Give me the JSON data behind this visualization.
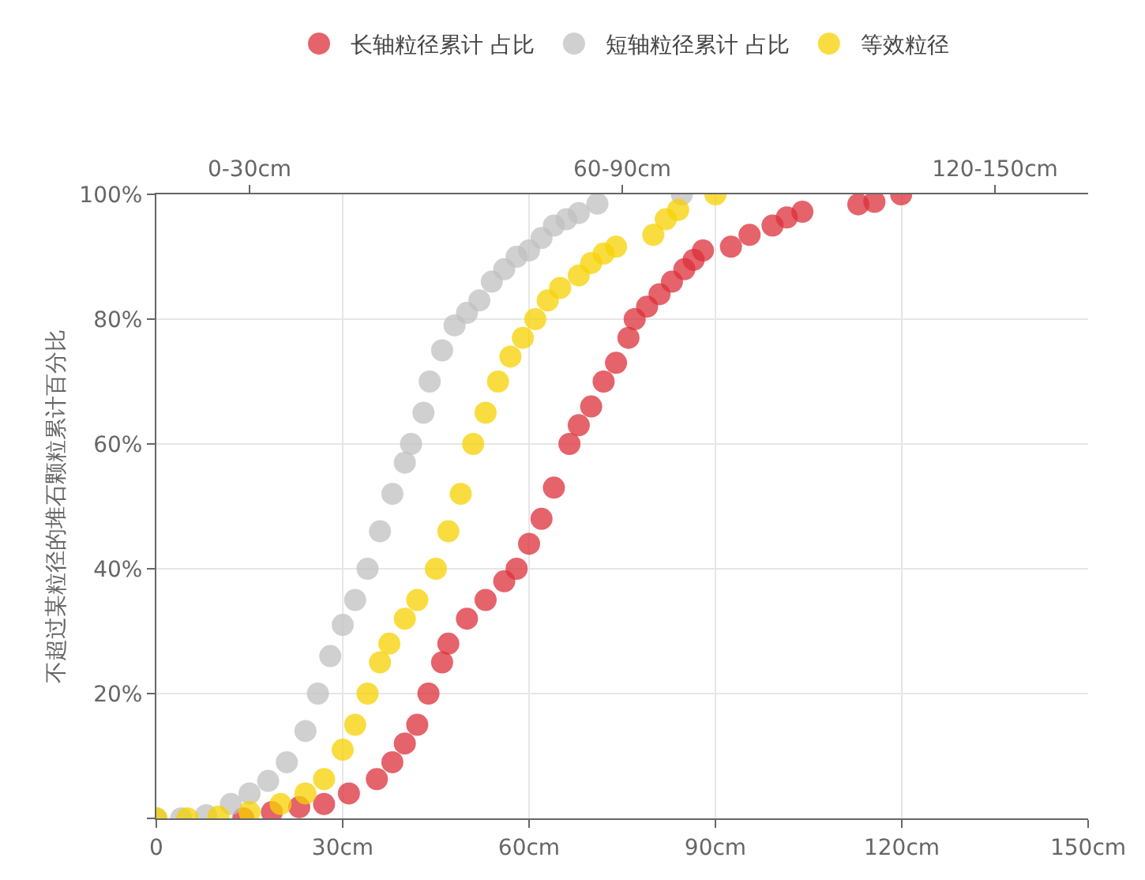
{
  "chart_data": {
    "type": "scatter",
    "ylabel": "不超过某粒径的堆石颗粒累计百分比",
    "xlim": [
      0,
      150
    ],
    "xticks": [
      0,
      {
        "value": 30,
        "label": "30cm"
      },
      {
        "value": 60,
        "label": "60cm"
      },
      {
        "value": 90,
        "label": "90cm"
      },
      {
        "value": 120,
        "label": "120cm"
      },
      {
        "value": 150,
        "label": "150cm"
      }
    ],
    "annotations": [
      "0-30cm",
      "60-90cm",
      "120-150cm"
    ],
    "ylim": [
      0,
      100
    ],
    "yticks": [
      {
        "value": 0,
        "label": null
      },
      {
        "value": 20,
        "label": "20%"
      },
      {
        "value": 40,
        "label": "40%"
      },
      {
        "value": 60,
        "label": "60%"
      },
      {
        "value": 80,
        "label": "80%"
      },
      {
        "value": 100,
        "label": "100%"
      }
    ],
    "grid": true,
    "legend": "top",
    "marker": "circle",
    "series": [
      {
        "name": "长轴粒径累计 占比",
        "color": "#dc2f39",
        "x": [
          14,
          18.6,
          23,
          27,
          31,
          35.5,
          38,
          40,
          42,
          43.8,
          46,
          47,
          50,
          53,
          56,
          58,
          60,
          62,
          64,
          66.5,
          68,
          70,
          72,
          74,
          76,
          77,
          79,
          81,
          83,
          85,
          86.5,
          88,
          92.5,
          95.5,
          99.2,
          101.5,
          104,
          113,
          115.6,
          119.9
        ],
        "values": [
          0,
          1,
          1.8,
          2.3,
          4,
          6.3,
          9,
          12,
          15,
          20,
          25,
          28,
          32,
          35,
          38,
          40,
          44,
          48,
          53,
          60,
          63,
          66,
          70,
          73,
          77,
          80,
          82,
          84,
          86,
          88,
          89.5,
          91,
          91.6,
          93.5,
          95,
          96.3,
          97.2,
          98.4,
          98.8,
          100
        ]
      },
      {
        "name": "短轴粒径累计 占比",
        "color": "#c0c0c0",
        "x": [
          0,
          4,
          8,
          12,
          15,
          18,
          21,
          24,
          26,
          28,
          30,
          32,
          34,
          36,
          38,
          40,
          41,
          43,
          44,
          46,
          48,
          50,
          52,
          54,
          56,
          58,
          60,
          62,
          64,
          66,
          68,
          71,
          84.6
        ],
        "values": [
          0,
          0,
          0.5,
          2.3,
          4,
          6,
          9,
          14,
          20,
          26,
          31,
          35,
          40,
          46,
          52,
          57,
          60,
          65,
          70,
          75,
          79,
          81,
          83,
          86,
          88,
          90,
          91,
          93,
          95,
          96,
          97,
          98.5,
          100
        ]
      },
      {
        "name": "等效粒径",
        "color": "#f7d200",
        "x": [
          0,
          5,
          10,
          15,
          20,
          24,
          27,
          30,
          32,
          34,
          36,
          37.5,
          40,
          42,
          45,
          47,
          49,
          51,
          53,
          55,
          57,
          59,
          61,
          63,
          65,
          68,
          70,
          72,
          74,
          80,
          82,
          84,
          90
        ],
        "values": [
          0,
          0,
          0.3,
          1,
          2.3,
          4,
          6.3,
          11,
          15,
          20,
          25,
          28,
          32,
          35,
          40,
          46,
          52,
          60,
          65,
          70,
          74,
          77,
          80,
          83,
          85,
          87,
          89,
          90.5,
          91.6,
          93.5,
          96,
          97.5,
          100
        ]
      }
    ]
  }
}
